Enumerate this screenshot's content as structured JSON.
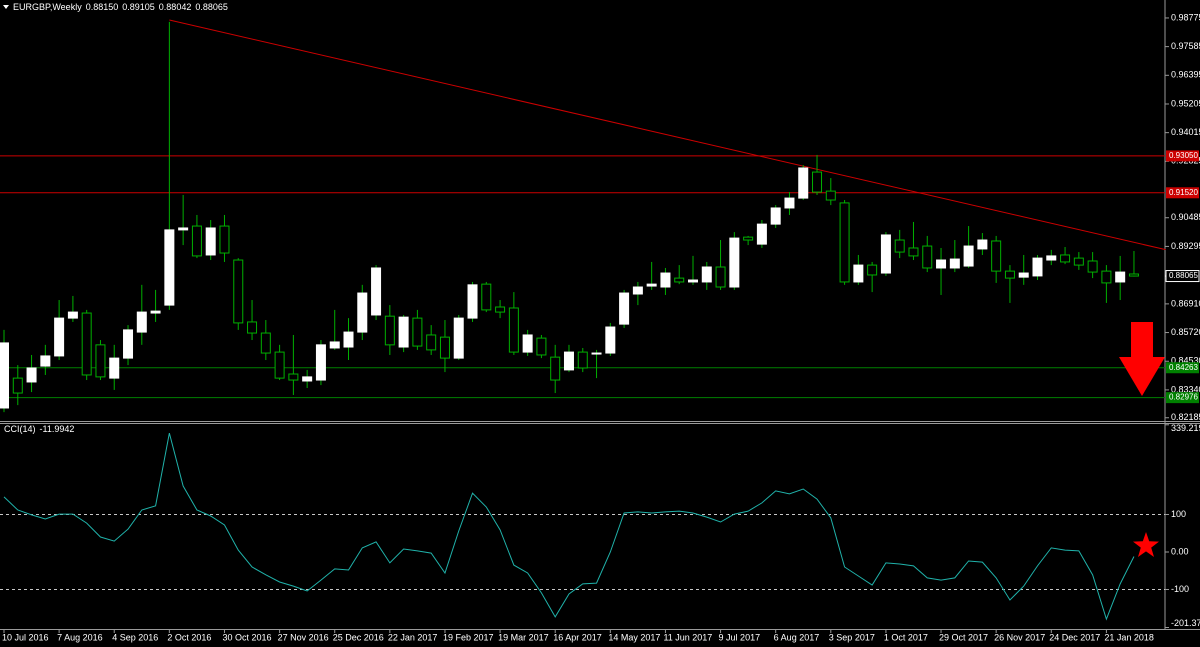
{
  "chart_data": [
    {
      "type": "candlestick",
      "title": "EURGBP,Weekly",
      "header_labels": [
        "0.88150",
        "0.89105",
        "0.88042",
        "0.88065"
      ],
      "categories": [
        "10 Jul 2016",
        null,
        null,
        null,
        "7 Aug 2016",
        null,
        null,
        null,
        "4 Sep 2016",
        null,
        null,
        null,
        "2 Oct 2016",
        null,
        null,
        null,
        "30 Oct 2016",
        null,
        null,
        null,
        "27 Nov 2016",
        null,
        null,
        null,
        "25 Dec 2016",
        null,
        null,
        null,
        "22 Jan 2017",
        null,
        null,
        null,
        "19 Feb 2017",
        null,
        null,
        null,
        "19 Mar 2017",
        null,
        null,
        null,
        "16 Apr 2017",
        null,
        null,
        null,
        "14 May 2017",
        null,
        null,
        null,
        "11 Jun 2017",
        null,
        null,
        null,
        "9 Jul 2017",
        null,
        null,
        null,
        "6 Aug 2017",
        null,
        null,
        null,
        "3 Sep 2017",
        null,
        null,
        null,
        "1 Oct 2017",
        null,
        null,
        null,
        "29 Oct 2017",
        null,
        null,
        null,
        "26 Nov 2017",
        null,
        null,
        null,
        "24 Dec 2017",
        null,
        null,
        null,
        "21 Jan 2018",
        null,
        null
      ],
      "open": [
        0.8259,
        0.8383,
        0.8367,
        0.8433,
        0.8475,
        0.8632,
        0.8653,
        0.8521,
        0.8383,
        0.8466,
        0.8574,
        0.8653,
        0.8686,
        0.8998,
        0.9014,
        0.8894,
        0.9014,
        0.8873,
        0.8616,
        0.857,
        0.8491,
        0.84,
        0.8371,
        0.8375,
        0.8508,
        0.8512,
        0.8574,
        0.8645,
        0.864,
        0.8512,
        0.8632,
        0.8562,
        0.8553,
        0.8466,
        0.8632,
        0.8773,
        0.8678,
        0.8674,
        0.8491,
        0.8549,
        0.847,
        0.8417,
        0.8491,
        0.8483,
        0.8487,
        0.8607,
        0.8732,
        0.8765,
        0.8761,
        0.8798,
        0.8782,
        0.8782,
        0.8844,
        0.8761,
        0.8968,
        0.8939,
        0.9022,
        0.9089,
        0.913,
        0.9238,
        0.9159,
        0.911,
        0.8782,
        0.8852,
        0.8819,
        0.8956,
        0.8923,
        0.8931,
        0.884,
        0.884,
        0.8848,
        0.8919,
        0.8952,
        0.8827,
        0.8802,
        0.8807,
        0.8873,
        0.8894,
        0.8881,
        0.8869,
        0.8827,
        0.8782,
        0.8815
      ],
      "high": [
        0.8583,
        0.8437,
        0.8479,
        0.8521,
        0.8707,
        0.8724,
        0.8666,
        0.8541,
        0.8521,
        0.8603,
        0.877,
        0.8749,
        0.9861,
        0.9143,
        0.906,
        0.9039,
        0.906,
        0.8881,
        0.8707,
        0.8624,
        0.8521,
        0.8562,
        0.8417,
        0.8541,
        0.8666,
        0.8632,
        0.877,
        0.8852,
        0.8686,
        0.8645,
        0.8666,
        0.8603,
        0.8624,
        0.8645,
        0.8782,
        0.8782,
        0.8707,
        0.874,
        0.8583,
        0.8562,
        0.8521,
        0.8521,
        0.8508,
        0.85,
        0.8612,
        0.8749,
        0.8782,
        0.8865,
        0.884,
        0.8852,
        0.889,
        0.8865,
        0.8956,
        0.8989,
        0.8973,
        0.9039,
        0.9101,
        0.9155,
        0.9267,
        0.9309,
        0.9213,
        0.9122,
        0.8894,
        0.8865,
        0.8989,
        0.8998,
        0.9031,
        0.8973,
        0.8923,
        0.8956,
        0.9014,
        0.8985,
        0.8973,
        0.8852,
        0.8894,
        0.8894,
        0.8915,
        0.8927,
        0.8906,
        0.8906,
        0.8852,
        0.889,
        0.89105
      ],
      "low": [
        0.8242,
        0.8271,
        0.8325,
        0.8396,
        0.8458,
        0.8616,
        0.8375,
        0.8375,
        0.8334,
        0.8437,
        0.8521,
        0.8616,
        0.8666,
        0.8935,
        0.8881,
        0.8873,
        0.8865,
        0.8583,
        0.8541,
        0.8458,
        0.8375,
        0.8313,
        0.8342,
        0.8354,
        0.85,
        0.8458,
        0.8541,
        0.8624,
        0.8479,
        0.8491,
        0.85,
        0.8479,
        0.8408,
        0.8458,
        0.8616,
        0.8657,
        0.8632,
        0.8479,
        0.8475,
        0.8466,
        0.8321,
        0.8408,
        0.8408,
        0.8383,
        0.8475,
        0.8591,
        0.8686,
        0.8749,
        0.8728,
        0.8773,
        0.877,
        0.8749,
        0.8749,
        0.8749,
        0.8935,
        0.8923,
        0.9006,
        0.906,
        0.9122,
        0.9143,
        0.9101,
        0.877,
        0.877,
        0.874,
        0.8807,
        0.8881,
        0.8873,
        0.8823,
        0.8728,
        0.8823,
        0.884,
        0.8894,
        0.8778,
        0.8695,
        0.877,
        0.879,
        0.8852,
        0.8856,
        0.8832,
        0.8798,
        0.8695,
        0.8707,
        0.88042
      ],
      "close": [
        0.8529,
        0.8321,
        0.8425,
        0.8475,
        0.8632,
        0.8657,
        0.8396,
        0.8388,
        0.8466,
        0.8583,
        0.8657,
        0.8661,
        0.8998,
        0.9006,
        0.889,
        0.9006,
        0.8902,
        0.8612,
        0.857,
        0.8487,
        0.8383,
        0.8375,
        0.8388,
        0.8521,
        0.8533,
        0.8574,
        0.8736,
        0.884,
        0.8521,
        0.8636,
        0.8516,
        0.85,
        0.8466,
        0.8632,
        0.877,
        0.8666,
        0.8657,
        0.8491,
        0.8562,
        0.8479,
        0.8375,
        0.8491,
        0.8425,
        0.8487,
        0.8595,
        0.8736,
        0.8761,
        0.8773,
        0.8819,
        0.8782,
        0.879,
        0.8844,
        0.8761,
        0.8964,
        0.8956,
        0.9022,
        0.9089,
        0.913,
        0.9255,
        0.9155,
        0.9122,
        0.8782,
        0.8852,
        0.8811,
        0.8977,
        0.8906,
        0.889,
        0.884,
        0.8873,
        0.8877,
        0.8931,
        0.8956,
        0.8827,
        0.8798,
        0.8819,
        0.8881,
        0.889,
        0.8865,
        0.8852,
        0.8823,
        0.8778,
        0.8823,
        0.88065
      ],
      "bull_color": "#ffffff",
      "bear_color": "#000000",
      "wick_color": "#00b000",
      "ylim": [
        0.8205,
        0.9952
      ],
      "yticks": [
        0.98775,
        0.97585,
        0.96395,
        0.95205,
        0.94015,
        0.92825,
        0.90485,
        0.89295,
        {
          "value": 0.8691,
          "label": "0.86910"
        },
        {
          "value": 0.8572,
          "label": "0.85720"
        },
        {
          "value": 0.8453,
          "label": "0.84530"
        },
        {
          "value": 0.8334,
          "label": "0.83340"
        },
        0.82185
      ],
      "current_price": {
        "value": 0.88065,
        "label": "0.88065"
      },
      "levels": [
        {
          "value": 0.9305,
          "label": "0.93050",
          "color": "#cc0000"
        },
        {
          "value": 0.9152,
          "label": "0.91520",
          "color": "#cc0000"
        },
        {
          "value": 0.8426,
          "label": "0.84263",
          "color": "#008000"
        },
        {
          "value": 0.8302,
          "label": "0.82976",
          "color": "#008000"
        }
      ],
      "trendline": {
        "x": [
          12,
          84.3
        ],
        "values": [
          0.9869,
          0.8916
        ],
        "color": "#cc0000"
      }
    },
    {
      "type": "line",
      "title": "CCI(14)",
      "color": "#20b2aa",
      "values": [
        147,
        112,
        99,
        88,
        101,
        101,
        77,
        40,
        29,
        61,
        112,
        123,
        317,
        176,
        112,
        96,
        72,
        5,
        -40,
        -61,
        -80,
        -91,
        -104,
        -75,
        -45,
        -48,
        11,
        27,
        -29,
        8,
        3,
        -3,
        -56,
        56,
        157,
        120,
        59,
        -35,
        -56,
        -109,
        -173,
        -112,
        -85,
        -83,
        0,
        104,
        107,
        104,
        107,
        109,
        104,
        93,
        80,
        101,
        109,
        131,
        163,
        155,
        168,
        141,
        91,
        -40,
        -64,
        -88,
        -29,
        -32,
        -37,
        -69,
        -75,
        -69,
        -24,
        -27,
        -69,
        -128,
        -91,
        -37,
        11,
        5,
        3,
        -61,
        -179,
        -85,
        -11.9942
      ],
      "ylim": [
        -201.3713,
        339.2197
      ],
      "yticks": [
        339.2197,
        100,
        {
          "value": 0,
          "label": "0.00"
        },
        -100,
        -201.3713
      ],
      "levels": [
        100,
        -100
      ]
    }
  ]
}
